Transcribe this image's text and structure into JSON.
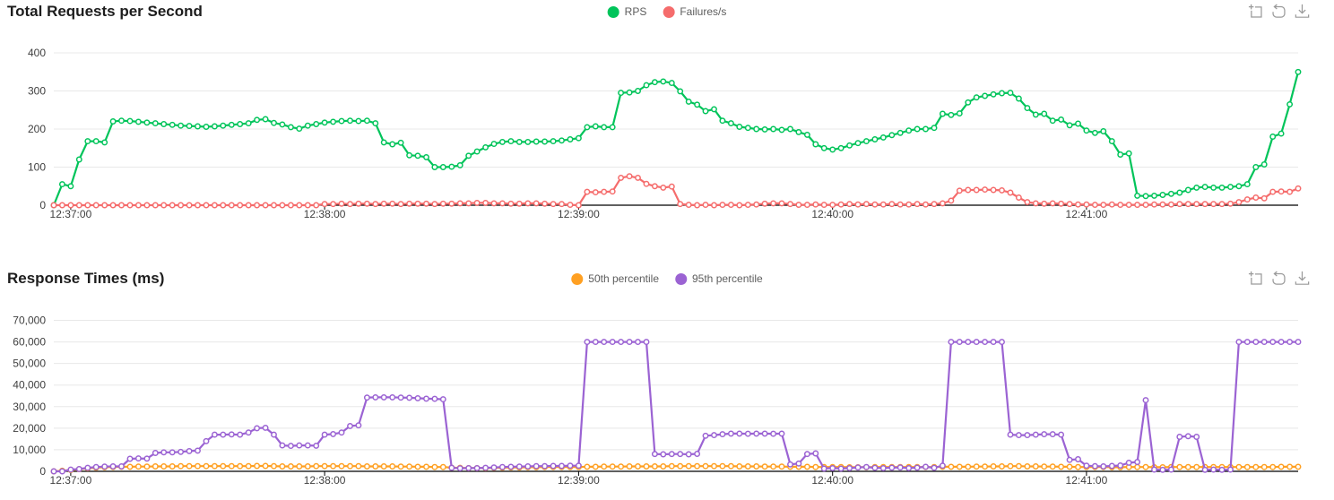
{
  "page": {
    "background": "#ffffff"
  },
  "chart_data": [
    {
      "type": "line",
      "title": "Total Requests per Second",
      "legend_position": "top-center",
      "grid": "horizontal-only",
      "toolbox_icons": [
        "data-zoom",
        "restore",
        "save-as-image"
      ],
      "x_start_time": "12:36:56",
      "x_interval_seconds": 2,
      "x_tick_labels": [
        "12:37:00",
        "12:38:00",
        "12:39:00",
        "12:40:00",
        "12:41:00"
      ],
      "y_ticks": [
        0,
        100,
        200,
        300,
        400
      ],
      "y_tick_labels": [
        "0",
        "100",
        "200",
        "300",
        "400"
      ],
      "ylim": [
        0,
        400
      ],
      "series": [
        {
          "name": "RPS",
          "color": "#00c45a",
          "marker": "open-circle",
          "values": [
            0,
            55,
            50,
            120,
            168,
            168,
            165,
            220,
            222,
            221,
            219,
            217,
            215,
            213,
            211,
            209,
            208,
            207,
            206,
            207,
            209,
            211,
            213,
            215,
            224,
            226,
            216,
            212,
            205,
            201,
            209,
            213,
            217,
            219,
            221,
            222,
            221,
            222,
            215,
            165,
            160,
            164,
            131,
            130,
            126,
            100,
            100,
            101,
            105,
            130,
            141,
            152,
            161,
            166,
            168,
            166,
            166,
            167,
            167,
            168,
            170,
            173,
            176,
            205,
            207,
            205,
            205,
            295,
            296,
            300,
            315,
            323,
            325,
            321,
            299,
            272,
            264,
            247,
            252,
            222,
            215,
            206,
            203,
            200,
            199,
            200,
            198,
            200,
            192,
            185,
            160,
            150,
            146,
            150,
            157,
            163,
            168,
            173,
            178,
            184,
            190,
            196,
            200,
            200,
            203,
            240,
            237,
            241,
            270,
            283,
            287,
            291,
            294,
            295,
            280,
            255,
            238,
            240,
            222,
            225,
            210,
            214,
            196,
            190,
            194,
            168,
            133,
            136,
            25,
            24,
            25,
            27,
            30,
            33,
            40,
            46,
            48,
            46,
            46,
            48,
            50,
            55,
            100,
            107,
            180,
            188,
            265,
            350
          ]
        },
        {
          "name": "Failures/s",
          "color": "#f56c6c",
          "marker": "open-circle",
          "values": [
            0,
            0,
            0,
            0,
            0,
            0,
            0,
            0,
            0,
            0,
            0,
            0,
            0,
            0,
            0,
            0,
            0,
            0,
            0,
            0,
            0,
            0,
            0,
            0,
            0,
            0,
            0,
            0,
            0,
            0,
            0,
            0,
            3,
            3,
            4,
            3,
            4,
            4,
            3,
            4,
            4,
            3,
            4,
            4,
            4,
            3,
            4,
            4,
            5,
            5,
            6,
            6,
            5,
            5,
            4,
            4,
            5,
            5,
            4,
            3,
            3,
            1,
            0,
            35,
            34,
            35,
            36,
            72,
            76,
            72,
            56,
            50,
            46,
            49,
            3,
            1,
            0,
            1,
            0,
            1,
            1,
            0,
            1,
            2,
            4,
            5,
            5,
            3,
            1,
            1,
            2,
            1,
            1,
            2,
            3,
            2,
            3,
            2,
            2,
            3,
            2,
            2,
            3,
            2,
            3,
            5,
            12,
            38,
            40,
            40,
            41,
            40,
            39,
            33,
            20,
            8,
            5,
            4,
            5,
            4,
            3,
            2,
            2,
            1,
            1,
            2,
            1,
            1,
            1,
            1,
            2,
            2,
            2,
            3,
            3,
            3,
            3,
            3,
            3,
            4,
            8,
            15,
            20,
            18,
            35,
            36,
            35,
            44
          ]
        }
      ]
    },
    {
      "type": "line",
      "title": "Response Times (ms)",
      "legend_position": "top-center",
      "grid": "horizontal-only",
      "toolbox_icons": [
        "data-zoom",
        "restore",
        "save-as-image"
      ],
      "x_start_time": "12:36:56",
      "x_interval_seconds": 2,
      "x_tick_labels": [
        "12:37:00",
        "12:38:00",
        "12:39:00",
        "12:40:00",
        "12:41:00"
      ],
      "y_ticks": [
        0,
        10000,
        20000,
        30000,
        40000,
        50000,
        60000,
        70000
      ],
      "y_tick_labels": [
        "0",
        "10,000",
        "20,000",
        "30,000",
        "40,000",
        "50,000",
        "60,000",
        "70,000"
      ],
      "ylim": [
        0,
        70000
      ],
      "series": [
        {
          "name": "50th percentile",
          "color": "#ffa022",
          "marker": "open-circle",
          "values": [
            0,
            300,
            600,
            1000,
            1400,
            1700,
            1900,
            2000,
            2100,
            2100,
            2200,
            2200,
            2300,
            2300,
            2300,
            2400,
            2400,
            2400,
            2400,
            2400,
            2400,
            2400,
            2400,
            2400,
            2500,
            2500,
            2400,
            2300,
            2300,
            2300,
            2300,
            2400,
            2400,
            2400,
            2400,
            2400,
            2400,
            2300,
            2300,
            2300,
            2300,
            2200,
            2200,
            2100,
            2100,
            2000,
            2000,
            1700,
            1600,
            1500,
            1500,
            1500,
            1600,
            1700,
            1800,
            1800,
            1900,
            1900,
            2000,
            2000,
            2000,
            2000,
            2000,
            2100,
            2100,
            2200,
            2200,
            2200,
            2300,
            2300,
            2300,
            2300,
            2300,
            2400,
            2400,
            2400,
            2400,
            2400,
            2400,
            2400,
            2400,
            2300,
            2300,
            2300,
            2200,
            2200,
            2200,
            2100,
            2100,
            2100,
            2000,
            2000,
            2000,
            2000,
            1900,
            1900,
            1900,
            2000,
            2000,
            2000,
            2000,
            2000,
            2000,
            2000,
            2000,
            2100,
            2100,
            2100,
            2100,
            2200,
            2200,
            2300,
            2300,
            2400,
            2400,
            2300,
            2300,
            2200,
            2200,
            2100,
            2100,
            2000,
            2000,
            2000,
            2000,
            1900,
            1900,
            2000,
            2000,
            2000,
            1900,
            1900,
            2000,
            2000,
            2000,
            2000,
            2000,
            2000,
            2000,
            2000,
            2000,
            2000,
            2000,
            2000,
            2000,
            2100,
            2100,
            2100
          ]
        },
        {
          "name": "95th percentile",
          "color": "#9b63d3",
          "marker": "open-circle",
          "values": [
            0,
            0,
            800,
            1100,
            1600,
            2000,
            2200,
            2300,
            2300,
            5800,
            6000,
            5900,
            8500,
            8800,
            8800,
            9000,
            9400,
            9600,
            14000,
            17000,
            17000,
            17100,
            17000,
            18000,
            20000,
            20200,
            17000,
            12000,
            11800,
            12000,
            12000,
            11900,
            17000,
            17300,
            18000,
            21000,
            21300,
            34200,
            34300,
            34300,
            34300,
            34200,
            34100,
            33900,
            33700,
            33600,
            33400,
            1600,
            1400,
            1500,
            1500,
            1600,
            1800,
            2000,
            2100,
            2200,
            2300,
            2400,
            2400,
            2500,
            2500,
            2600,
            2600,
            60000,
            60000,
            60000,
            60000,
            60000,
            60000,
            60000,
            60000,
            8000,
            7900,
            8000,
            8000,
            7900,
            8100,
            16500,
            16800,
            17200,
            17500,
            17500,
            17400,
            17500,
            17500,
            17400,
            17500,
            3200,
            3600,
            8000,
            8300,
            1300,
            1500,
            1300,
            1500,
            1800,
            2000,
            1600,
            1500,
            1700,
            1800,
            1500,
            1700,
            2100,
            1600,
            2600,
            60000,
            60000,
            60000,
            60000,
            60000,
            60000,
            60000,
            17000,
            16800,
            16800,
            17000,
            17200,
            17200,
            17000,
            5300,
            5600,
            2600,
            2400,
            2300,
            2500,
            2700,
            4000,
            4300,
            33000,
            800,
            700,
            800,
            16000,
            16300,
            16000,
            700,
            800,
            700,
            800,
            60000,
            60000,
            60000,
            60000,
            60000,
            60000,
            60000,
            60000
          ]
        }
      ]
    }
  ]
}
